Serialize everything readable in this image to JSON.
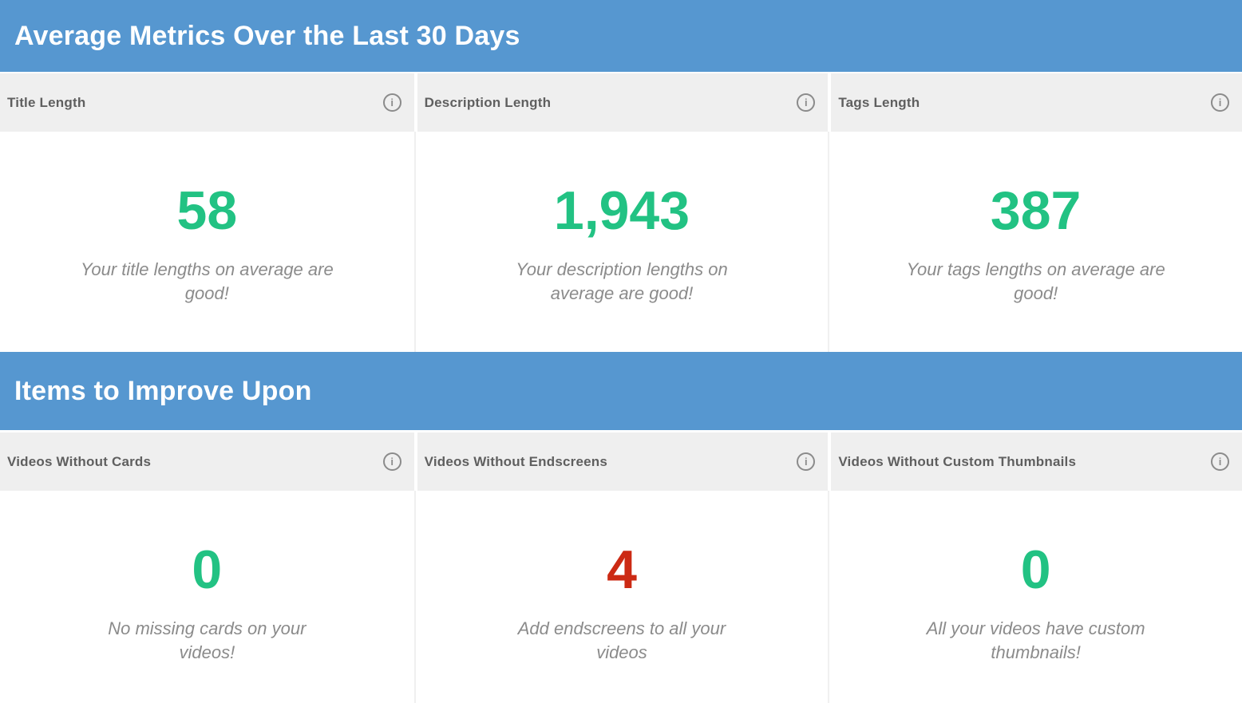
{
  "colors": {
    "section_bar_blue": "#5697d0",
    "card_header_bg": "#efefef",
    "positive_green": "#22c283",
    "negative_red": "#cc2a14",
    "subtitle_gray": "#8b8b8b"
  },
  "icons": {
    "info": "i"
  },
  "sections": [
    {
      "title": "Average Metrics Over the Last 30 Days",
      "cards": [
        {
          "header": "Title Length",
          "value": "58",
          "status": "good",
          "subtitle": "Your title lengths on average are\ngood!"
        },
        {
          "header": "Description Length",
          "value": "1,943",
          "status": "good",
          "subtitle": "Your description lengths on\naverage are good!"
        },
        {
          "header": "Tags Length",
          "value": "387",
          "status": "good",
          "subtitle": "Your tags lengths on average are\ngood!"
        }
      ]
    },
    {
      "title": "Items to Improve Upon",
      "cards": [
        {
          "header": "Videos Without Cards",
          "value": "0",
          "status": "good",
          "subtitle": "No missing cards on your\nvideos!"
        },
        {
          "header": "Videos Without Endscreens",
          "value": "4",
          "status": "bad",
          "subtitle": "Add endscreens to all your\nvideos"
        },
        {
          "header": "Videos Without Custom Thumbnails",
          "value": "0",
          "status": "good",
          "subtitle": "All your videos have custom\nthumbnails!"
        }
      ]
    }
  ]
}
